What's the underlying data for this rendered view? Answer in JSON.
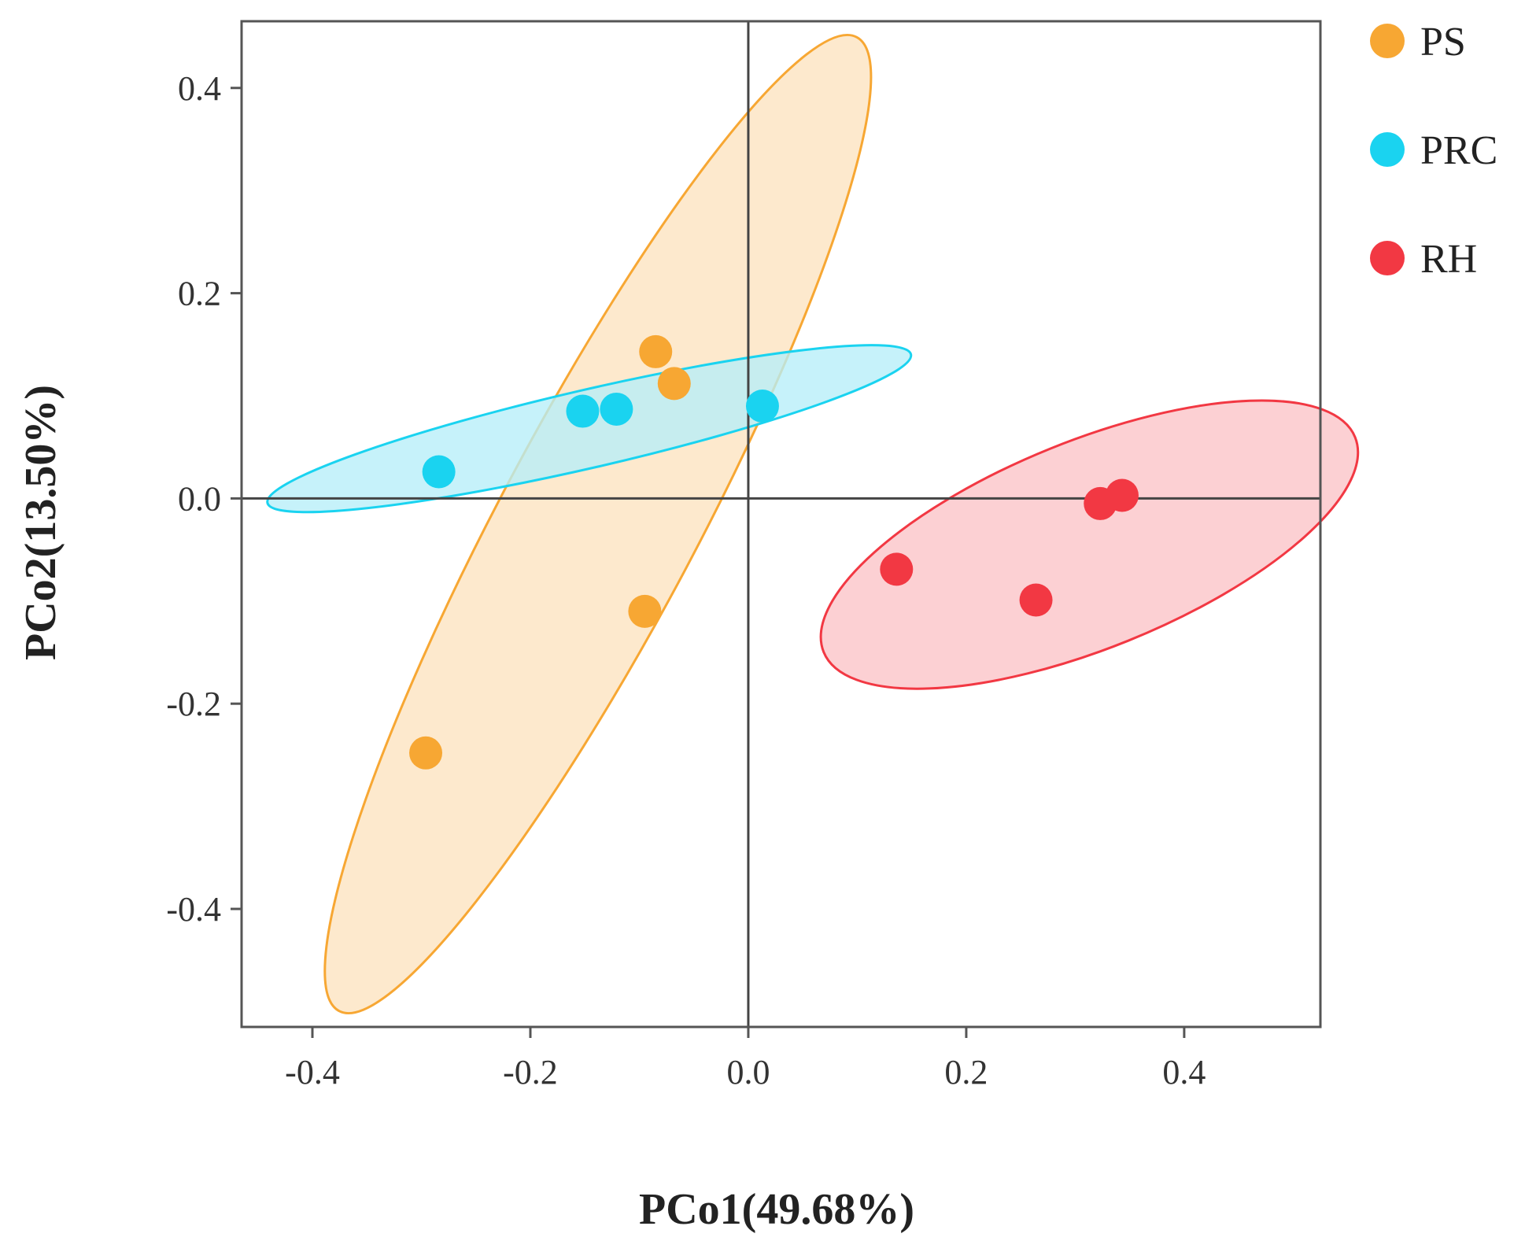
{
  "chart_data": {
    "type": "scatter",
    "title": "",
    "xlabel": "PCo1(49.68%)",
    "ylabel": "PCo2(13.50%)",
    "xlim": [
      -0.465,
      0.525
    ],
    "ylim": [
      -0.515,
      0.465
    ],
    "xticks": [
      -0.4,
      -0.2,
      0.0,
      0.2,
      0.4
    ],
    "yticks": [
      0.4,
      0.2,
      0.0,
      -0.2,
      -0.4
    ],
    "xtick_labels": [
      "-0.4",
      "-0.2",
      "0.0",
      "0.2",
      "0.4"
    ],
    "ytick_labels": [
      "0.4",
      "0.2",
      "0.0",
      "-0.2",
      "-0.4"
    ],
    "reference_lines": {
      "x": 0.0,
      "y": 0.0
    },
    "grid": false,
    "legend_position": "top-right outside",
    "series": [
      {
        "name": "PS",
        "color": "#F7A733",
        "ellipse_fill": "#FCE3BF",
        "points": [
          {
            "x": -0.085,
            "y": 0.143
          },
          {
            "x": -0.068,
            "y": 0.112
          },
          {
            "x": -0.095,
            "y": -0.11
          },
          {
            "x": -0.296,
            "y": -0.248
          }
        ],
        "ellipse": {
          "cx": -0.138,
          "cy": -0.025,
          "rx": 0.506,
          "ry": 0.096,
          "angle_deg": -62
        }
      },
      {
        "name": "PRC",
        "color": "#1AD3F0",
        "ellipse_fill": "#B6EEF8",
        "points": [
          {
            "x": -0.152,
            "y": 0.085
          },
          {
            "x": -0.121,
            "y": 0.087
          },
          {
            "x": 0.013,
            "y": 0.09
          },
          {
            "x": -0.284,
            "y": 0.026
          }
        ],
        "ellipse": {
          "cx": -0.146,
          "cy": 0.068,
          "rx": 0.303,
          "ry": 0.038,
          "angle_deg": -13
        }
      },
      {
        "name": "RH",
        "color": "#F23843",
        "ellipse_fill": "#FBC3C7",
        "points": [
          {
            "x": 0.323,
            "y": -0.005
          },
          {
            "x": 0.343,
            "y": 0.003
          },
          {
            "x": 0.136,
            "y": -0.069
          },
          {
            "x": 0.264,
            "y": -0.099
          }
        ],
        "ellipse": {
          "cx": 0.313,
          "cy": -0.045,
          "rx": 0.263,
          "ry": 0.101,
          "angle_deg": -22
        }
      }
    ]
  }
}
